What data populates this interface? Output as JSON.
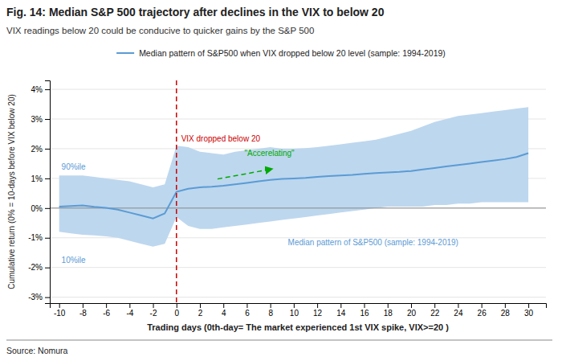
{
  "chart_data": {
    "type": "line",
    "title": "Fig. 14: Median S&P 500 trajectory after declines in the VIX to below 20",
    "subtitle": "VIX readings below 20 could be conducive to quicker gains by the S&P 500",
    "xlabel": "Trading days (0th-day= The market experienced 1st VIX spike, VIX>=20  )",
    "ylabel": "Cumulative return (0% = 10-days before VIX below 20)",
    "source": "Source: Nomura",
    "x": [
      -10,
      -9,
      -8,
      -7,
      -6,
      -5,
      -4,
      -3,
      -2,
      -1,
      0,
      1,
      2,
      3,
      4,
      5,
      6,
      7,
      8,
      9,
      10,
      11,
      12,
      13,
      14,
      15,
      16,
      17,
      18,
      19,
      20,
      21,
      22,
      23,
      24,
      25,
      26,
      27,
      28,
      29,
      30
    ],
    "series": [
      {
        "type": "band",
        "color": "#bdd7ee",
        "upper": [
          1.1,
          1.1,
          1.1,
          1.05,
          1.0,
          0.95,
          0.9,
          0.8,
          0.7,
          0.8,
          2.1,
          2.05,
          1.9,
          1.85,
          1.8,
          1.9,
          1.95,
          2.0,
          2.05,
          2.0,
          2.0,
          2.02,
          2.05,
          2.1,
          2.15,
          2.2,
          2.25,
          2.3,
          2.4,
          2.5,
          2.6,
          2.75,
          2.9,
          3.0,
          3.1,
          3.15,
          3.2,
          3.25,
          3.3,
          3.35,
          3.4
        ],
        "lower": [
          -0.8,
          -0.85,
          -0.9,
          -0.92,
          -0.95,
          -1.0,
          -1.1,
          -1.2,
          -1.3,
          -1.2,
          -0.3,
          -0.6,
          -0.7,
          -0.7,
          -0.65,
          -0.6,
          -0.55,
          -0.5,
          -0.45,
          -0.4,
          -0.35,
          -0.3,
          -0.25,
          -0.2,
          -0.15,
          -0.1,
          -0.05,
          0.0,
          0.05,
          0.05,
          0.05,
          0.05,
          0.1,
          0.1,
          0.15,
          0.15,
          0.2,
          0.2,
          0.2,
          0.2,
          0.2
        ]
      },
      {
        "type": "line",
        "name": "Median pattern of S&P500 when VIX dropped below 20 level (sample: 1994-2019)",
        "color": "#5b9bd5",
        "values": [
          0.05,
          0.07,
          0.09,
          0.04,
          0.01,
          -0.05,
          -0.15,
          -0.25,
          -0.35,
          -0.18,
          0.55,
          0.65,
          0.7,
          0.72,
          0.75,
          0.8,
          0.85,
          0.9,
          0.95,
          0.98,
          1.0,
          1.02,
          1.05,
          1.08,
          1.1,
          1.12,
          1.15,
          1.18,
          1.2,
          1.22,
          1.25,
          1.3,
          1.35,
          1.4,
          1.45,
          1.5,
          1.55,
          1.6,
          1.65,
          1.72,
          1.85
        ]
      }
    ],
    "legend": "top",
    "xlim": [
      -10.8,
      31.5
    ],
    "xticks": [
      -10,
      -8,
      -6,
      -4,
      -2,
      0,
      2,
      4,
      6,
      8,
      10,
      12,
      14,
      16,
      18,
      20,
      22,
      24,
      26,
      28,
      30
    ],
    "ylim": [
      -3.2,
      4.3
    ],
    "yticks": [
      {
        "value": -3,
        "label": "-3%"
      },
      {
        "value": -2,
        "label": "-2%"
      },
      {
        "value": -1,
        "label": "-1%"
      },
      {
        "value": 0,
        "label": "0%"
      },
      {
        "value": 1,
        "label": "1%"
      },
      {
        "value": 2,
        "label": "2%"
      },
      {
        "value": 3,
        "label": "3%"
      },
      {
        "value": 4,
        "label": "4%"
      }
    ],
    "grid": true,
    "vlines": [
      {
        "x": 0,
        "color": "#cc0000",
        "line_style": "dashed"
      }
    ],
    "hlines": [
      {
        "y": 0,
        "color": "#888888"
      }
    ],
    "arrows": [
      {
        "x": [
          3.5,
          8.2
        ],
        "y": [
          0.98,
          1.32
        ],
        "color": "#00aa00",
        "line_style": "dashed"
      }
    ],
    "annotations": [
      {
        "text": "VIX dropped below 20",
        "x": 0.4,
        "y": 2.25,
        "color": "#cc0000"
      },
      {
        "text": "\"Accerelating\"",
        "x": 5.8,
        "y": 1.75,
        "color": "#00aa00"
      },
      {
        "text": "Median pattern of S&P500 (sample: 1994-2019)",
        "x": 9.5,
        "y": -1.25,
        "color": "#5b9bd5"
      },
      {
        "text": "90%ile",
        "x": -9.8,
        "y": 1.3,
        "color": "#5b9bd5"
      },
      {
        "text": "10%ile",
        "x": -9.8,
        "y": -1.85,
        "color": "#5b9bd5"
      }
    ]
  }
}
